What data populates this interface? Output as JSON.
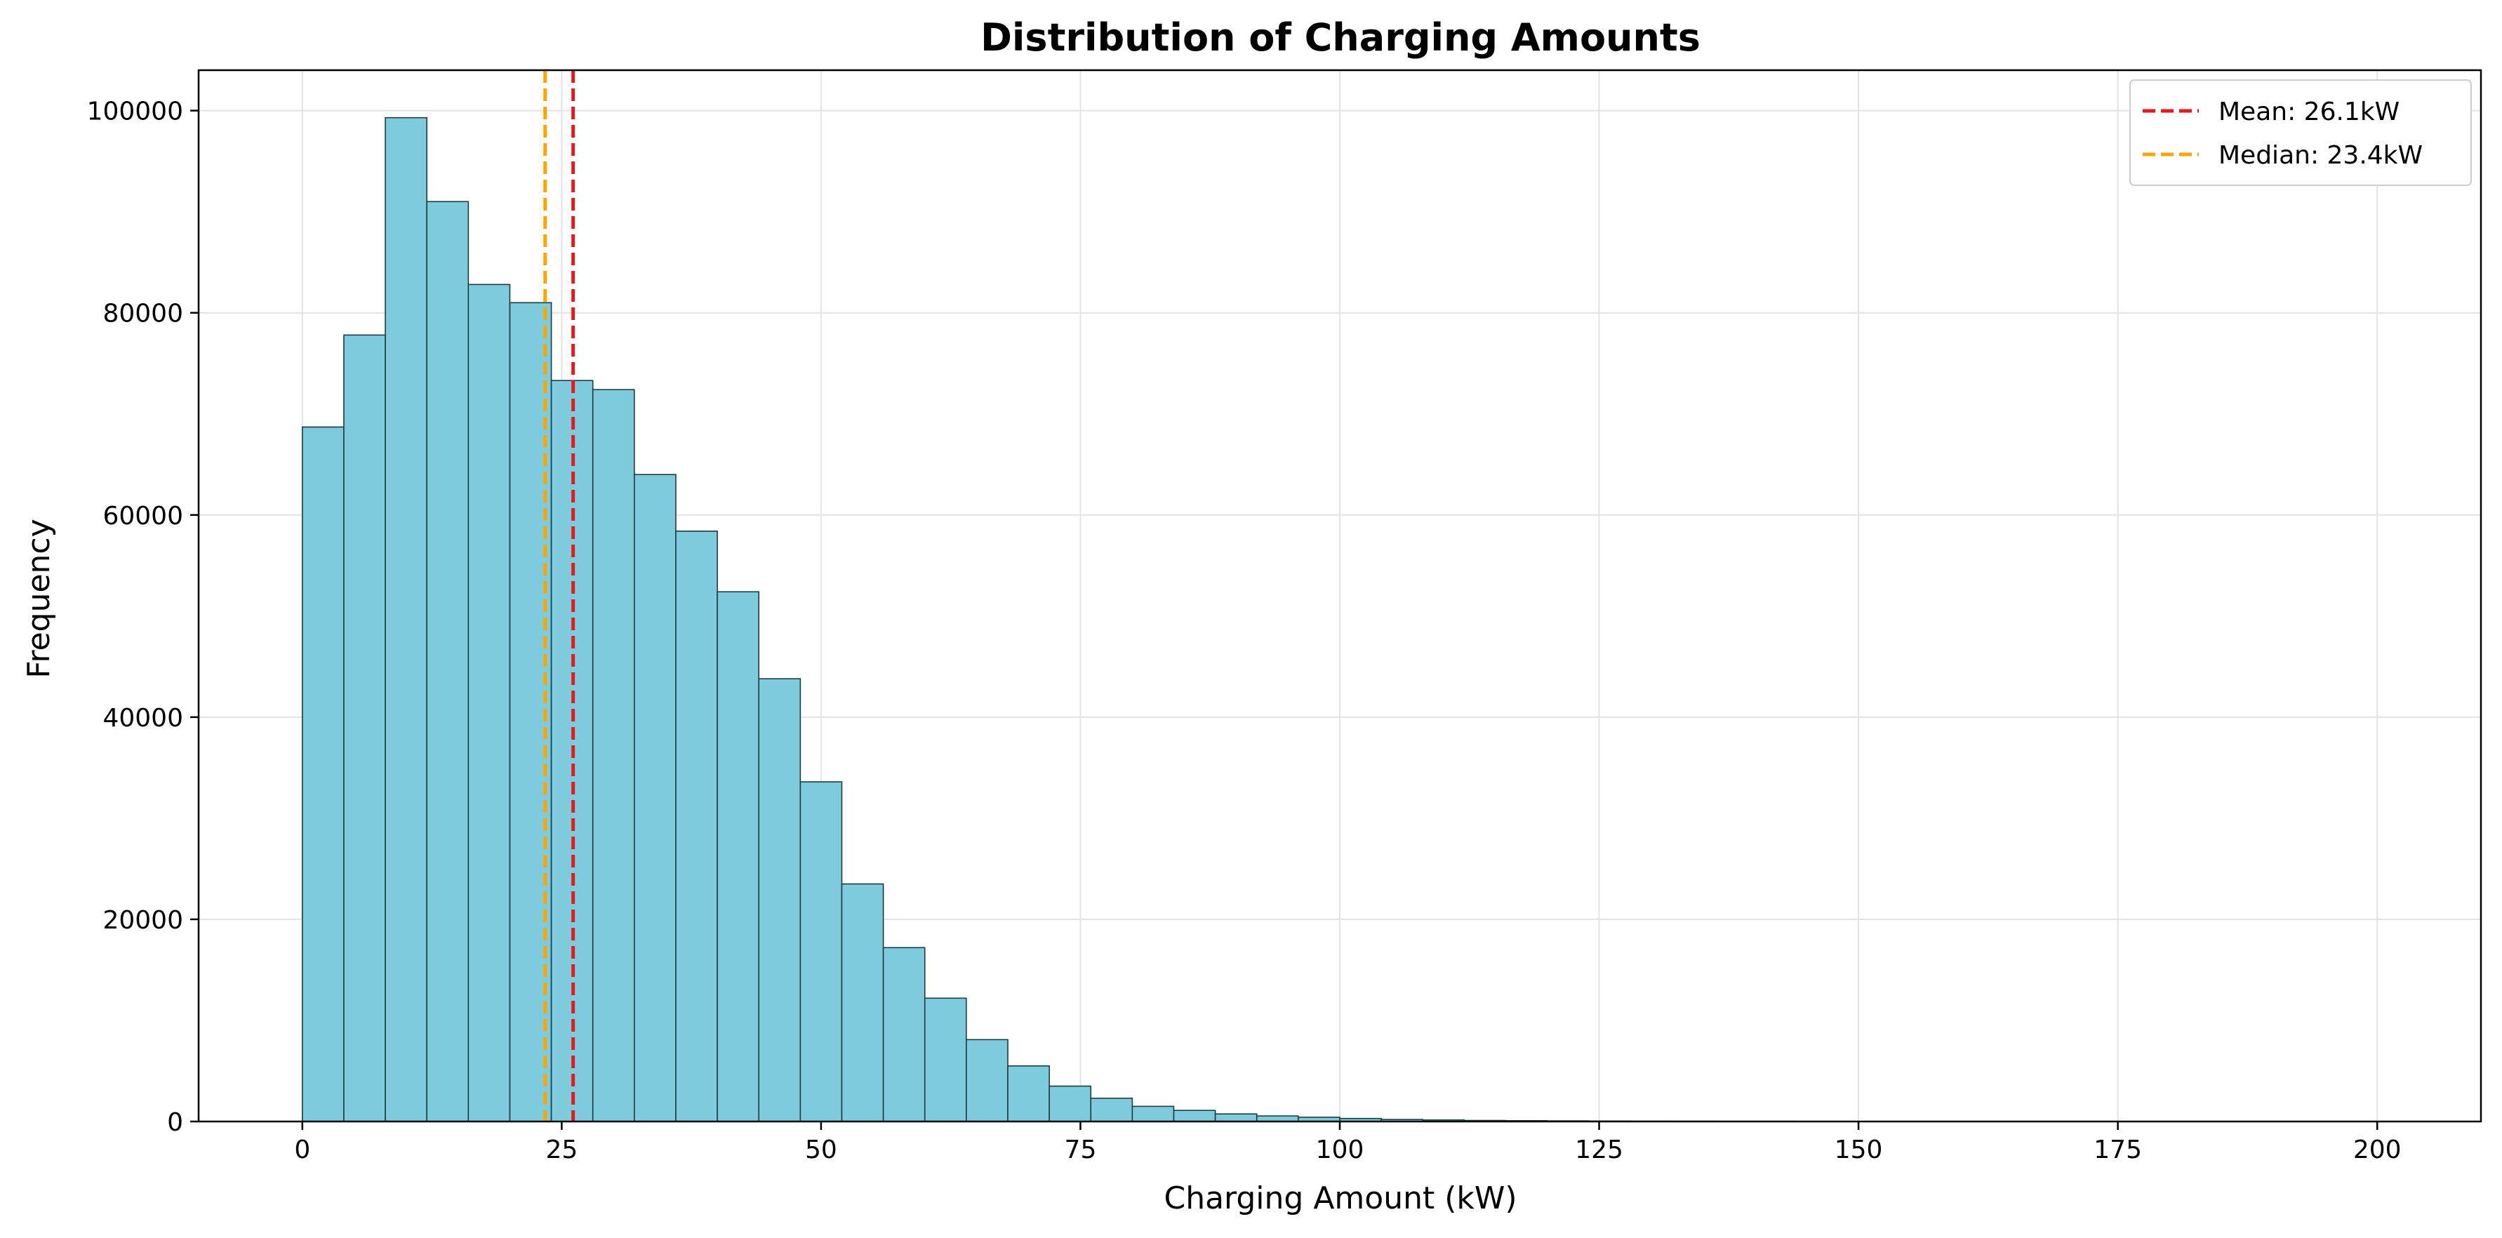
{
  "chart_data": {
    "type": "bar",
    "title": "Distribution of Charging Amounts",
    "xlabel": "Charging Amount (kW)",
    "ylabel": "Frequency",
    "xlim": [
      -10,
      210
    ],
    "ylim": [
      0,
      104000
    ],
    "xticks": [
      0,
      25,
      50,
      75,
      100,
      125,
      150,
      175,
      200
    ],
    "yticks": [
      0,
      20000,
      40000,
      60000,
      80000,
      100000
    ],
    "grid": true,
    "legend_position": "top-right",
    "bar_color": "#7ecbdd",
    "bar_edge_color": "#1f3b40",
    "bin_edges": [
      0,
      4,
      8,
      12,
      16,
      20,
      24,
      28,
      32,
      36,
      40,
      44,
      48,
      52,
      56,
      60,
      64,
      68,
      72,
      76,
      80,
      84,
      88,
      92,
      96,
      100,
      104,
      108,
      112,
      116,
      120,
      124,
      128,
      132,
      136,
      140,
      144,
      148,
      152,
      156,
      160,
      164,
      168,
      172,
      176,
      180,
      184,
      188,
      192,
      196,
      200
    ],
    "values": [
      68700,
      77800,
      99300,
      91000,
      82800,
      81000,
      73300,
      72400,
      64000,
      58400,
      52400,
      43800,
      33600,
      23500,
      17200,
      12200,
      8100,
      5500,
      3500,
      2300,
      1500,
      1100,
      750,
      550,
      420,
      300,
      200,
      150,
      100,
      80,
      60,
      45,
      35,
      30,
      25,
      20,
      15,
      12,
      10,
      10,
      8,
      6,
      5,
      5,
      4,
      3,
      3,
      2,
      2,
      2
    ],
    "reference_lines": [
      {
        "name": "Mean: 26.1kW",
        "x": 26.1,
        "color": "#e41a1c"
      },
      {
        "name": "Median: 23.4kW",
        "x": 23.4,
        "color": "#ffa500"
      }
    ]
  }
}
